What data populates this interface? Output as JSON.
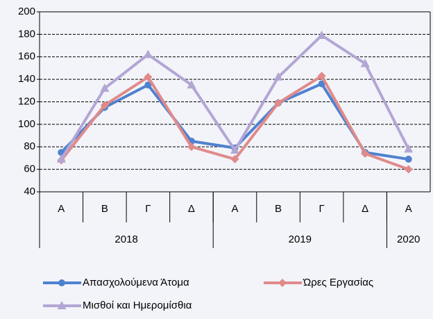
{
  "chart_data": {
    "type": "line",
    "categories": [
      "Α",
      "Β",
      "Γ",
      "Δ",
      "Α",
      "Β",
      "Γ",
      "Δ",
      "Α"
    ],
    "groups": [
      {
        "label": "2018",
        "span": 4
      },
      {
        "label": "2019",
        "span": 4
      },
      {
        "label": "2020",
        "span": 1
      }
    ],
    "series": [
      {
        "name": "Απασχολούμενα Άτομα",
        "color": "#4f81d0",
        "marker": "circle",
        "values": [
          75,
          115,
          135,
          85,
          79,
          119,
          136,
          75,
          69
        ]
      },
      {
        "name": "Ώρες Εργασίας",
        "color": "#e08a8a",
        "marker": "diamond",
        "values": [
          68,
          117,
          142,
          80,
          69,
          119,
          143,
          74,
          60
        ]
      },
      {
        "name": "Μισθοί και Ημερομίσθια",
        "color": "#b3a6d4",
        "marker": "triangle",
        "values": [
          69,
          132,
          162,
          135,
          77,
          142,
          179,
          154,
          78
        ]
      }
    ],
    "ylim": [
      40,
      200
    ],
    "yticks": [
      40,
      60,
      80,
      100,
      120,
      140,
      160,
      180,
      200
    ],
    "grid": true
  }
}
